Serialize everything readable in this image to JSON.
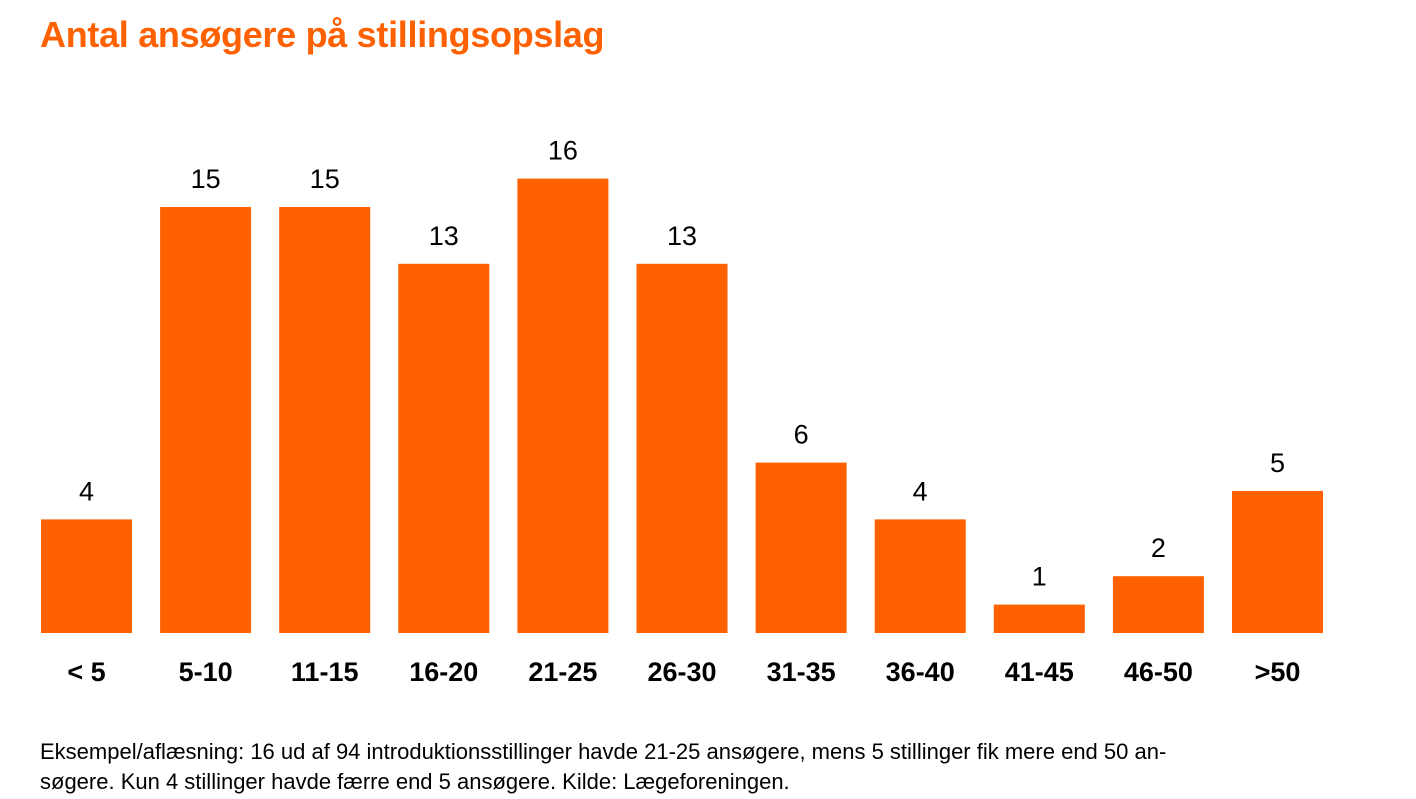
{
  "colors": {
    "accent": "#ff6000",
    "text": "#000000"
  },
  "chart_data": {
    "type": "bar",
    "title": "Antal ansøgere på stillingsopslag",
    "xlabel": "",
    "ylabel": "",
    "ylim": [
      0,
      16
    ],
    "grid": false,
    "categories": [
      "< 5",
      "5-10",
      "11-15",
      "16-20",
      "21-25",
      "26-30",
      "31-35",
      "36-40",
      "41-45",
      "46-50",
      ">50"
    ],
    "values": [
      4,
      15,
      15,
      13,
      16,
      13,
      6,
      4,
      1,
      2,
      5
    ]
  },
  "footnote": {
    "line1": "Eksempel/aflæsning: 16 ud af 94 introduktionsstillinger havde 21-25 ansøgere, mens 5 stillinger fik mere end 50 an-",
    "line2": "søgere. Kun 4 stillinger havde færre end 5 ansøgere. Kilde: Lægeforeningen."
  }
}
